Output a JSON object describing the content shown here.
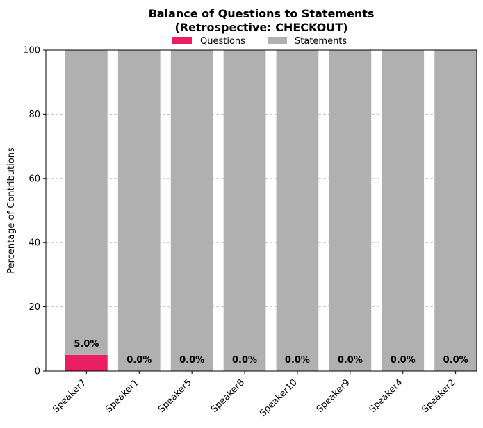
{
  "chart_data": {
    "type": "bar",
    "stacked": true,
    "title_line1": "Balance of Questions to Statements",
    "title_line2": "(Retrospective: CHECKOUT)",
    "xlabel": "",
    "ylabel": "Percentage of Contributions",
    "categories": [
      "Speaker7",
      "Speaker1",
      "Speaker5",
      "Speaker8",
      "Speaker10",
      "Speaker9",
      "Speaker4",
      "Speaker2"
    ],
    "series": [
      {
        "name": "Questions",
        "color": "#e91e63",
        "values": [
          5,
          0,
          0,
          0,
          0,
          0,
          0,
          0
        ]
      },
      {
        "name": "Statements",
        "color": "#b0b0b0",
        "values": [
          95,
          100,
          100,
          100,
          100,
          100,
          100,
          100
        ]
      }
    ],
    "data_labels": [
      "5.0%",
      "0.0%",
      "0.0%",
      "0.0%",
      "0.0%",
      "0.0%",
      "0.0%",
      "0.0%"
    ],
    "ylim": [
      0,
      100
    ],
    "yticks": [
      0,
      20,
      40,
      60,
      80,
      100
    ],
    "grid": "y-dashed",
    "legend_position": "top-center"
  }
}
